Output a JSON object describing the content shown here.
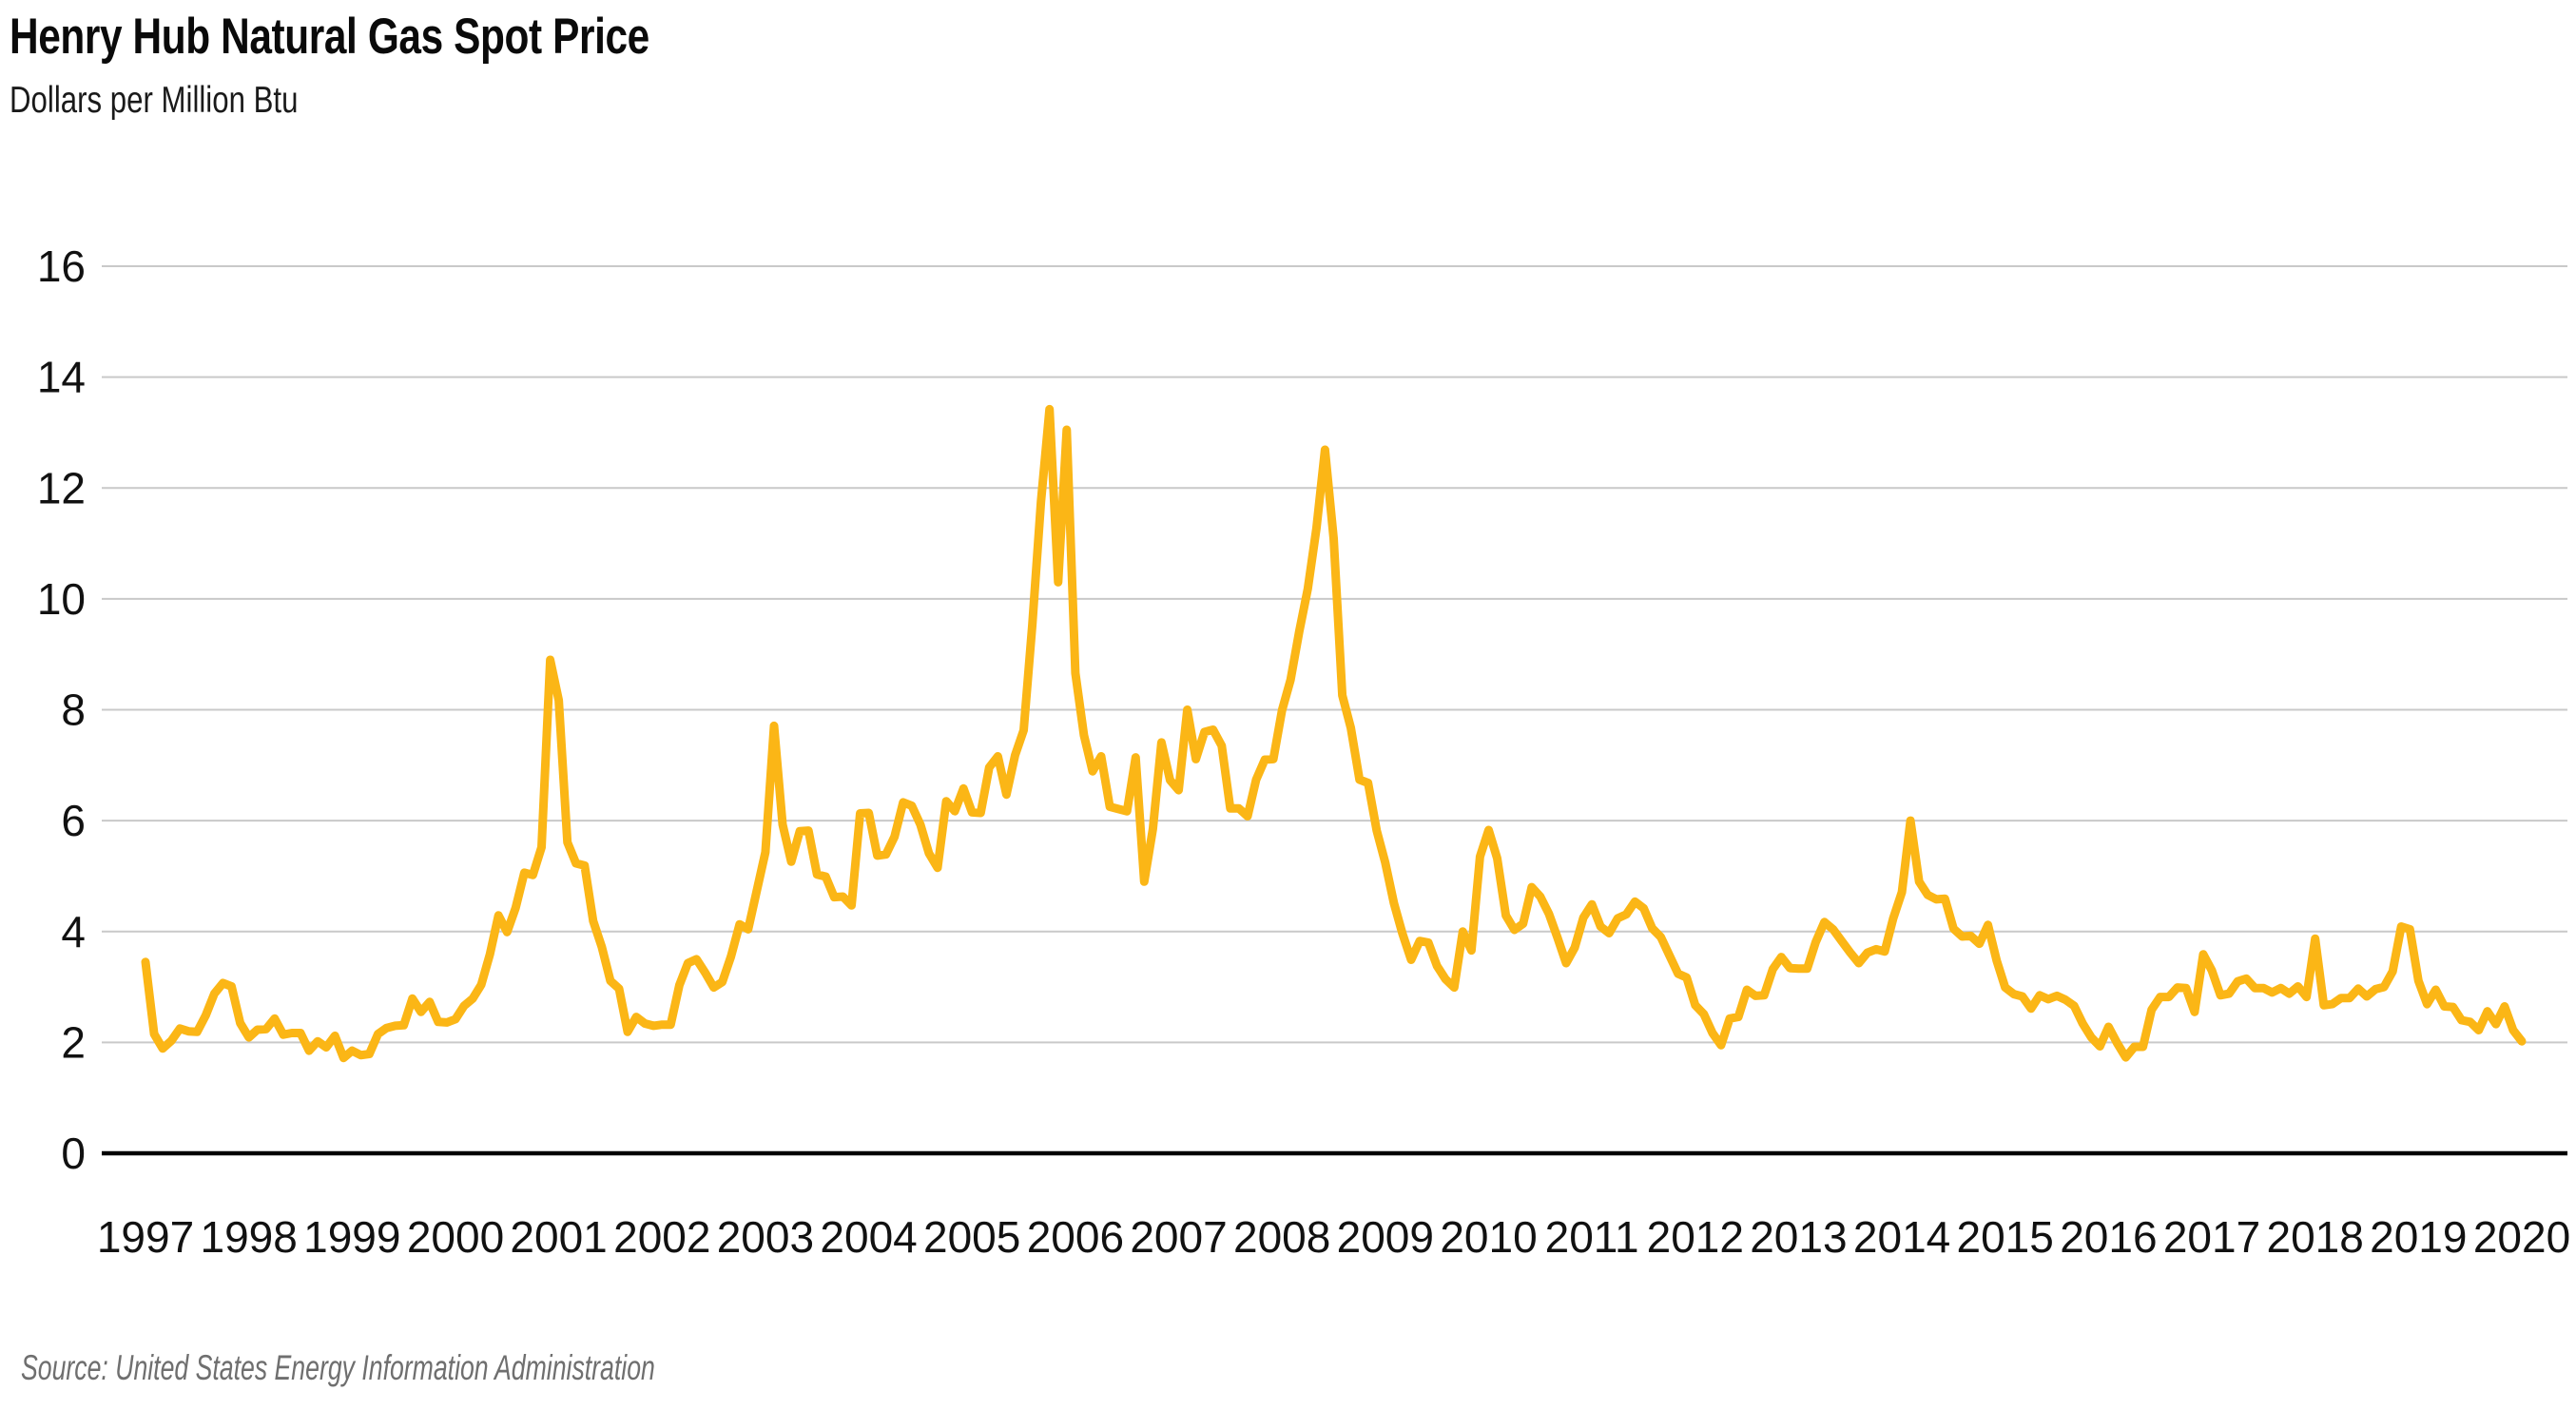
{
  "header": {
    "title": "Henry Hub Natural Gas Spot Price",
    "subtitle": "Dollars per Million Btu"
  },
  "footer": {
    "source": "Source: United States Energy Information Administration"
  },
  "colors": {
    "line": "#FBB616",
    "grid": "#C9C9C9",
    "axis": "#000000",
    "text": "#111111",
    "muted_text": "#6F6F6F"
  },
  "chart_data": {
    "type": "line",
    "title": "Henry Hub Natural Gas Spot Price",
    "xlabel": "",
    "ylabel": "Dollars per Million Btu",
    "ylim": [
      0,
      16
    ],
    "ytick_step": 2,
    "grid": "horizontal-only",
    "legend_position": "none",
    "x_frequency": "monthly",
    "x_start": "1997-01",
    "x_end": "2020-01",
    "x_tick_labels": [
      1997,
      1998,
      1999,
      2000,
      2001,
      2002,
      2003,
      2004,
      2005,
      2006,
      2007,
      2008,
      2009,
      2010,
      2011,
      2012,
      2013,
      2014,
      2015,
      2016,
      2017,
      2018,
      2019,
      2020
    ],
    "series": [
      {
        "name": "Henry Hub natural gas spot price (dollars per million Btu)",
        "values": [
          3.45,
          2.15,
          1.89,
          2.03,
          2.25,
          2.2,
          2.19,
          2.49,
          2.88,
          3.07,
          3.01,
          2.35,
          2.09,
          2.23,
          2.24,
          2.43,
          2.14,
          2.17,
          2.17,
          1.85,
          2.02,
          1.91,
          2.12,
          1.72,
          1.85,
          1.77,
          1.79,
          2.15,
          2.26,
          2.3,
          2.31,
          2.79,
          2.55,
          2.73,
          2.37,
          2.36,
          2.42,
          2.66,
          2.79,
          3.04,
          3.59,
          4.29,
          3.99,
          4.43,
          5.06,
          5.02,
          5.52,
          8.9,
          8.17,
          5.61,
          5.23,
          5.19,
          4.19,
          3.72,
          3.11,
          2.97,
          2.19,
          2.46,
          2.34,
          2.3,
          2.32,
          2.32,
          3.03,
          3.43,
          3.5,
          3.26,
          2.99,
          3.09,
          3.55,
          4.13,
          4.04,
          4.74,
          5.43,
          7.71,
          5.93,
          5.26,
          5.81,
          5.82,
          5.03,
          4.99,
          4.62,
          4.63,
          4.47,
          6.13,
          6.14,
          5.37,
          5.39,
          5.71,
          6.33,
          6.27,
          5.93,
          5.41,
          5.15,
          6.35,
          6.17,
          6.58,
          6.15,
          6.14,
          6.96,
          7.16,
          6.47,
          7.18,
          7.63,
          9.53,
          11.75,
          13.42,
          10.3,
          13.05,
          8.66,
          7.54,
          6.89,
          7.16,
          6.25,
          6.21,
          6.17,
          7.14,
          4.9,
          5.85,
          7.41,
          6.73,
          6.55,
          8.0,
          7.11,
          7.6,
          7.64,
          7.35,
          6.22,
          6.22,
          6.08,
          6.74,
          7.1,
          7.11,
          7.99,
          8.54,
          9.41,
          10.18,
          11.27,
          12.69,
          11.09,
          8.26,
          7.67,
          6.74,
          6.68,
          5.82,
          5.24,
          4.51,
          3.96,
          3.49,
          3.83,
          3.8,
          3.38,
          3.14,
          2.99,
          4.0,
          3.66,
          5.35,
          5.83,
          5.32,
          4.29,
          4.03,
          4.14,
          4.8,
          4.63,
          4.32,
          3.89,
          3.43,
          3.71,
          4.25,
          4.49,
          4.09,
          3.97,
          4.24,
          4.31,
          4.54,
          4.42,
          4.06,
          3.9,
          3.57,
          3.24,
          3.17,
          2.67,
          2.51,
          2.17,
          1.95,
          2.43,
          2.46,
          2.95,
          2.84,
          2.85,
          3.32,
          3.54,
          3.34,
          3.33,
          3.33,
          3.81,
          4.17,
          4.04,
          3.83,
          3.62,
          3.43,
          3.62,
          3.68,
          3.64,
          4.24,
          4.71,
          6.0,
          4.9,
          4.66,
          4.58,
          4.59,
          4.05,
          3.91,
          3.92,
          3.78,
          4.12,
          3.48,
          2.99,
          2.87,
          2.83,
          2.61,
          2.85,
          2.78,
          2.84,
          2.77,
          2.66,
          2.34,
          2.09,
          1.93,
          2.28,
          1.99,
          1.73,
          1.92,
          1.92,
          2.59,
          2.82,
          2.82,
          2.99,
          2.98,
          2.55,
          3.59,
          3.3,
          2.85,
          2.88,
          3.1,
          3.15,
          2.98,
          2.98,
          2.9,
          2.98,
          2.88,
          3.01,
          2.82,
          3.87,
          2.67,
          2.69,
          2.8,
          2.8,
          2.97,
          2.83,
          2.96,
          3.0,
          3.28,
          4.09,
          4.04,
          3.11,
          2.69,
          2.95,
          2.65,
          2.64,
          2.4,
          2.37,
          2.22,
          2.56,
          2.33,
          2.65,
          2.22,
          2.02
        ]
      }
    ]
  }
}
